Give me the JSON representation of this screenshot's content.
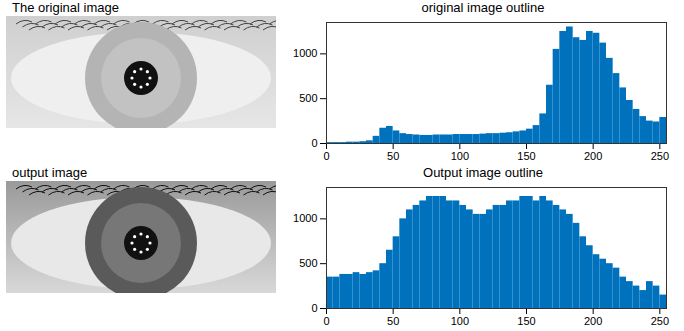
{
  "images": [
    {
      "title": "The original image"
    },
    {
      "title": "output image"
    }
  ],
  "chart_data": [
    {
      "type": "histogram",
      "title": "original image outline",
      "color": "#0072bd",
      "bins": [
        0,
        5,
        10,
        15,
        20,
        25,
        30,
        35,
        40,
        45,
        50,
        55,
        60,
        65,
        70,
        75,
        80,
        85,
        90,
        95,
        100,
        105,
        110,
        115,
        120,
        125,
        130,
        135,
        140,
        145,
        150,
        155,
        160,
        165,
        170,
        175,
        180,
        185,
        190,
        195,
        200,
        205,
        210,
        215,
        220,
        225,
        230,
        235,
        240,
        245,
        250,
        255
      ],
      "values": [
        10,
        10,
        10,
        15,
        15,
        20,
        30,
        80,
        170,
        190,
        140,
        110,
        100,
        95,
        90,
        90,
        95,
        95,
        95,
        100,
        100,
        100,
        100,
        105,
        110,
        110,
        115,
        120,
        130,
        140,
        160,
        200,
        330,
        650,
        1050,
        1250,
        1300,
        1180,
        1150,
        1250,
        1230,
        1120,
        950,
        780,
        620,
        480,
        380,
        300,
        250,
        240,
        290
      ],
      "xlim": [
        0,
        255
      ],
      "xticks": [
        0,
        50,
        100,
        150,
        200,
        250
      ],
      "ylim": [
        0,
        1350
      ],
      "yticks": [
        0,
        500,
        1000
      ],
      "grid": false
    },
    {
      "type": "histogram",
      "title": "Output image outline",
      "color": "#0072bd",
      "bins": [
        0,
        5,
        10,
        15,
        20,
        25,
        30,
        35,
        40,
        45,
        50,
        55,
        60,
        65,
        70,
        75,
        80,
        85,
        90,
        95,
        100,
        105,
        110,
        115,
        120,
        125,
        130,
        135,
        140,
        145,
        150,
        155,
        160,
        165,
        170,
        175,
        180,
        185,
        190,
        195,
        200,
        205,
        210,
        215,
        220,
        225,
        230,
        235,
        240,
        245,
        250,
        255
      ],
      "values": [
        350,
        350,
        380,
        380,
        400,
        380,
        400,
        420,
        500,
        650,
        800,
        1000,
        1100,
        1150,
        1200,
        1250,
        1250,
        1250,
        1200,
        1200,
        1150,
        1100,
        1050,
        1050,
        1100,
        1150,
        1150,
        1200,
        1200,
        1250,
        1250,
        1200,
        1250,
        1200,
        1150,
        1100,
        1050,
        950,
        800,
        700,
        600,
        550,
        500,
        450,
        350,
        300,
        250,
        200,
        300,
        250,
        150
      ],
      "xlim": [
        0,
        255
      ],
      "xticks": [
        0,
        50,
        100,
        150,
        200,
        250
      ],
      "ylim": [
        0,
        1350
      ],
      "yticks": [
        0,
        500,
        1000
      ],
      "grid": false
    }
  ]
}
